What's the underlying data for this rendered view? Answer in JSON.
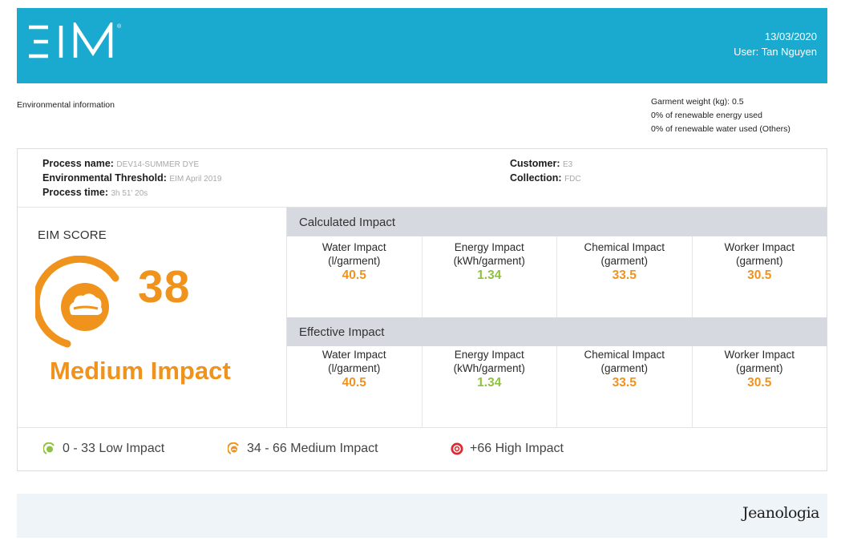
{
  "header": {
    "logo_text": "EIM",
    "date": "13/03/2020",
    "user": "User: Tan Nguyen",
    "background": "#1aa9cf"
  },
  "environmental_title": "Environmental information",
  "garment": {
    "weight": "Garment weight (kg): 0.5",
    "renewable_energy": "0% of renewable energy used",
    "renewable_water": "0% of renewable water used (Others)"
  },
  "process": {
    "name_label": "Process name:",
    "name_value": "DEV14-SUMMER DYE",
    "threshold_label": "Environmental Threshold:",
    "threshold_value": "EIM April 2019",
    "time_label": "Process time:",
    "time_value": "3h 51' 20s",
    "customer_label": "Customer:",
    "customer_value": "E3",
    "collection_label": "Collection:",
    "collection_value": "FDC"
  },
  "score": {
    "title": "EIM SCORE",
    "value": "38",
    "level": "Medium Impact",
    "color": "#f0931c",
    "icon": "medium-impact-gauge-icon"
  },
  "calculated": {
    "title": "Calculated Impact",
    "cells": [
      {
        "name": "Water Impact",
        "unit": "(l/garment)",
        "value": "40.5"
      },
      {
        "name": "Energy Impact",
        "unit": "(kWh/garment)",
        "value": "1.34"
      },
      {
        "name": "Chemical Impact",
        "unit": "(garment)",
        "value": "33.5"
      },
      {
        "name": "Worker Impact",
        "unit": "(garment)",
        "value": "30.5"
      }
    ]
  },
  "effective": {
    "title": "Effective Impact",
    "cells": [
      {
        "name": "Water Impact",
        "unit": "(l/garment)",
        "value": "40.5"
      },
      {
        "name": "Energy Impact",
        "unit": "(kWh/garment)",
        "value": "1.34"
      },
      {
        "name": "Chemical Impact",
        "unit": "(garment)",
        "value": "33.5"
      },
      {
        "name": "Worker Impact",
        "unit": "(garment)",
        "value": "30.5"
      }
    ]
  },
  "legend": [
    {
      "label": "0 - 33 Low Impact",
      "color": "#8fc23f"
    },
    {
      "label": "34 - 66 Medium Impact",
      "color": "#f0931c"
    },
    {
      "label": "+66 High Impact",
      "color": "#e3262d"
    }
  ],
  "footer": {
    "brand": "Jeanologia"
  }
}
